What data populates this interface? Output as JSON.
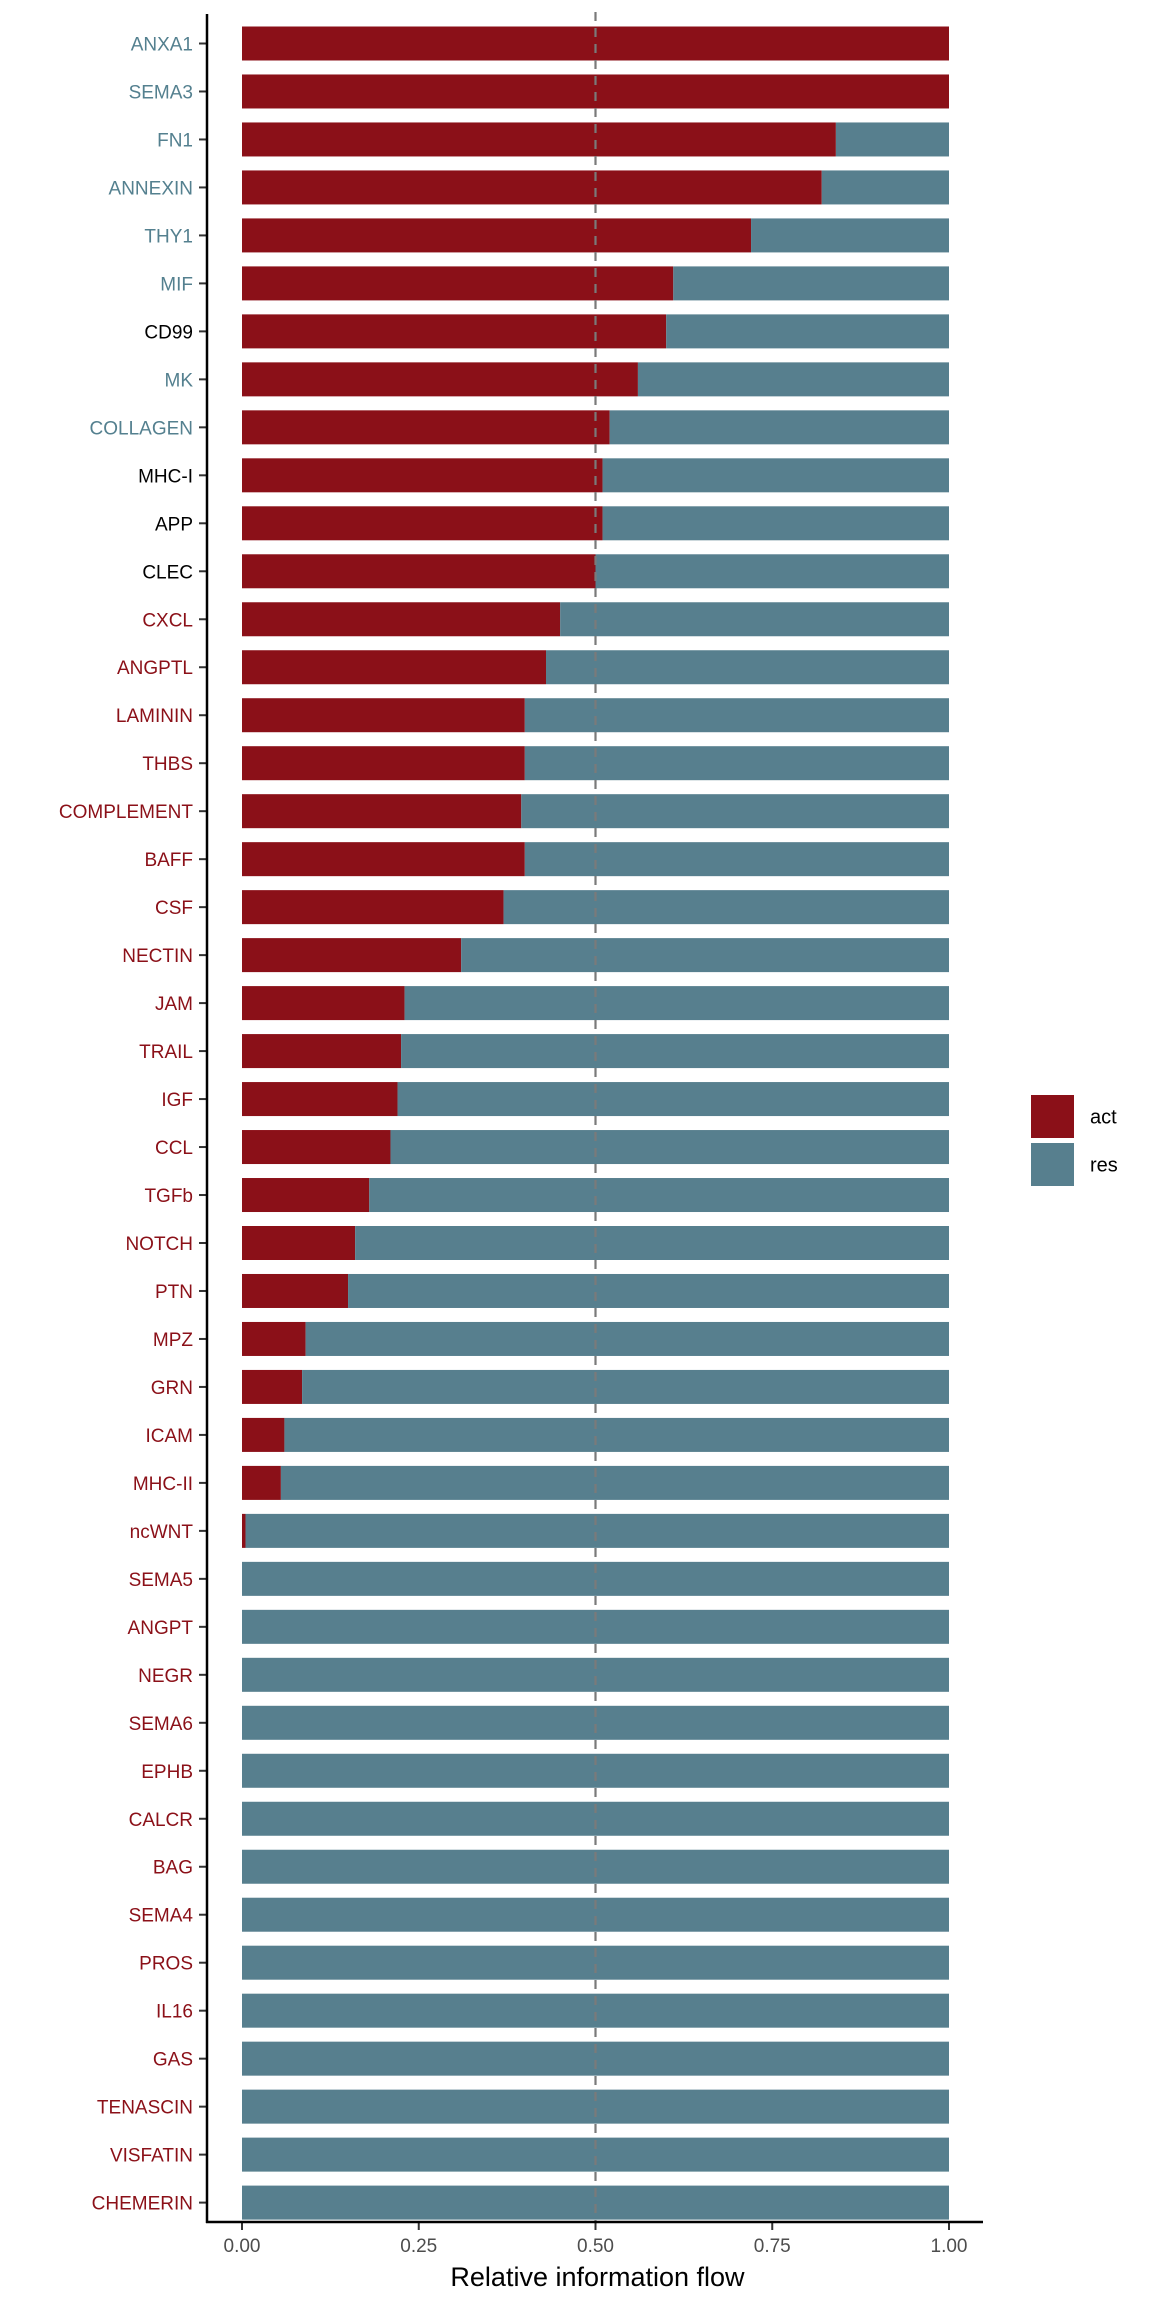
{
  "chart_data": {
    "type": "bar",
    "orientation": "horizontal",
    "stacked": true,
    "xlabel": "Relative information flow",
    "ylabel": "",
    "xlim": [
      0,
      1
    ],
    "x_ticks": [
      0,
      0.25,
      0.5,
      0.75,
      1
    ],
    "x_tick_labels": [
      "0.00",
      "0.25",
      "0.50",
      "0.75",
      "1.00"
    ],
    "reference_line": 0.5,
    "grid": false,
    "legend_position": "right",
    "categories": [
      "ANXA1",
      "SEMA3",
      "FN1",
      "ANNEXIN",
      "THY1",
      "MIF",
      "CD99",
      "MK",
      "COLLAGEN",
      "MHC-I",
      "APP",
      "CLEC",
      "CXCL",
      "ANGPTL",
      "LAMININ",
      "THBS",
      "COMPLEMENT",
      "BAFF",
      "CSF",
      "NECTIN",
      "JAM",
      "TRAIL",
      "IGF",
      "CCL",
      "TGFb",
      "NOTCH",
      "PTN",
      "MPZ",
      "GRN",
      "ICAM",
      "MHC-II",
      "ncWNT",
      "SEMA5",
      "ANGPT",
      "NEGR",
      "SEMA6",
      "EPHB",
      "CALCR",
      "BAG",
      "SEMA4",
      "PROS",
      "IL16",
      "GAS",
      "TENASCIN",
      "VISFATIN",
      "CHEMERIN"
    ],
    "label_groups": [
      "res",
      "res",
      "res",
      "res",
      "res",
      "res",
      "none",
      "res",
      "res",
      "none",
      "none",
      "none",
      "act",
      "act",
      "act",
      "act",
      "act",
      "act",
      "act",
      "act",
      "act",
      "act",
      "act",
      "act",
      "act",
      "act",
      "act",
      "act",
      "act",
      "act",
      "act",
      "act",
      "act",
      "act",
      "act",
      "act",
      "act",
      "act",
      "act",
      "act",
      "act",
      "act",
      "act",
      "act",
      "act",
      "act"
    ],
    "label_colors": {
      "act": "#8B1018",
      "res": "#54808F",
      "none": "#000000"
    },
    "series": [
      {
        "name": "act",
        "color": "#8B1018",
        "values": [
          1.0,
          1.0,
          0.84,
          0.82,
          0.72,
          0.61,
          0.6,
          0.56,
          0.52,
          0.51,
          0.51,
          0.5,
          0.45,
          0.43,
          0.4,
          0.4,
          0.395,
          0.4,
          0.37,
          0.31,
          0.23,
          0.225,
          0.22,
          0.21,
          0.18,
          0.16,
          0.15,
          0.09,
          0.085,
          0.06,
          0.055,
          0.005,
          0,
          0,
          0,
          0,
          0,
          0,
          0,
          0,
          0,
          0,
          0,
          0,
          0,
          0
        ]
      },
      {
        "name": "res",
        "color": "#577F8E",
        "values": [
          0,
          0,
          0.16,
          0.18,
          0.28,
          0.39,
          0.4,
          0.44,
          0.48,
          0.49,
          0.49,
          0.5,
          0.55,
          0.57,
          0.6,
          0.6,
          0.605,
          0.6,
          0.63,
          0.69,
          0.77,
          0.775,
          0.78,
          0.79,
          0.82,
          0.84,
          0.85,
          0.91,
          0.915,
          0.94,
          0.945,
          0.995,
          1,
          1,
          1,
          1,
          1,
          1,
          1,
          1,
          1,
          1,
          1,
          1,
          1,
          1
        ]
      }
    ]
  }
}
